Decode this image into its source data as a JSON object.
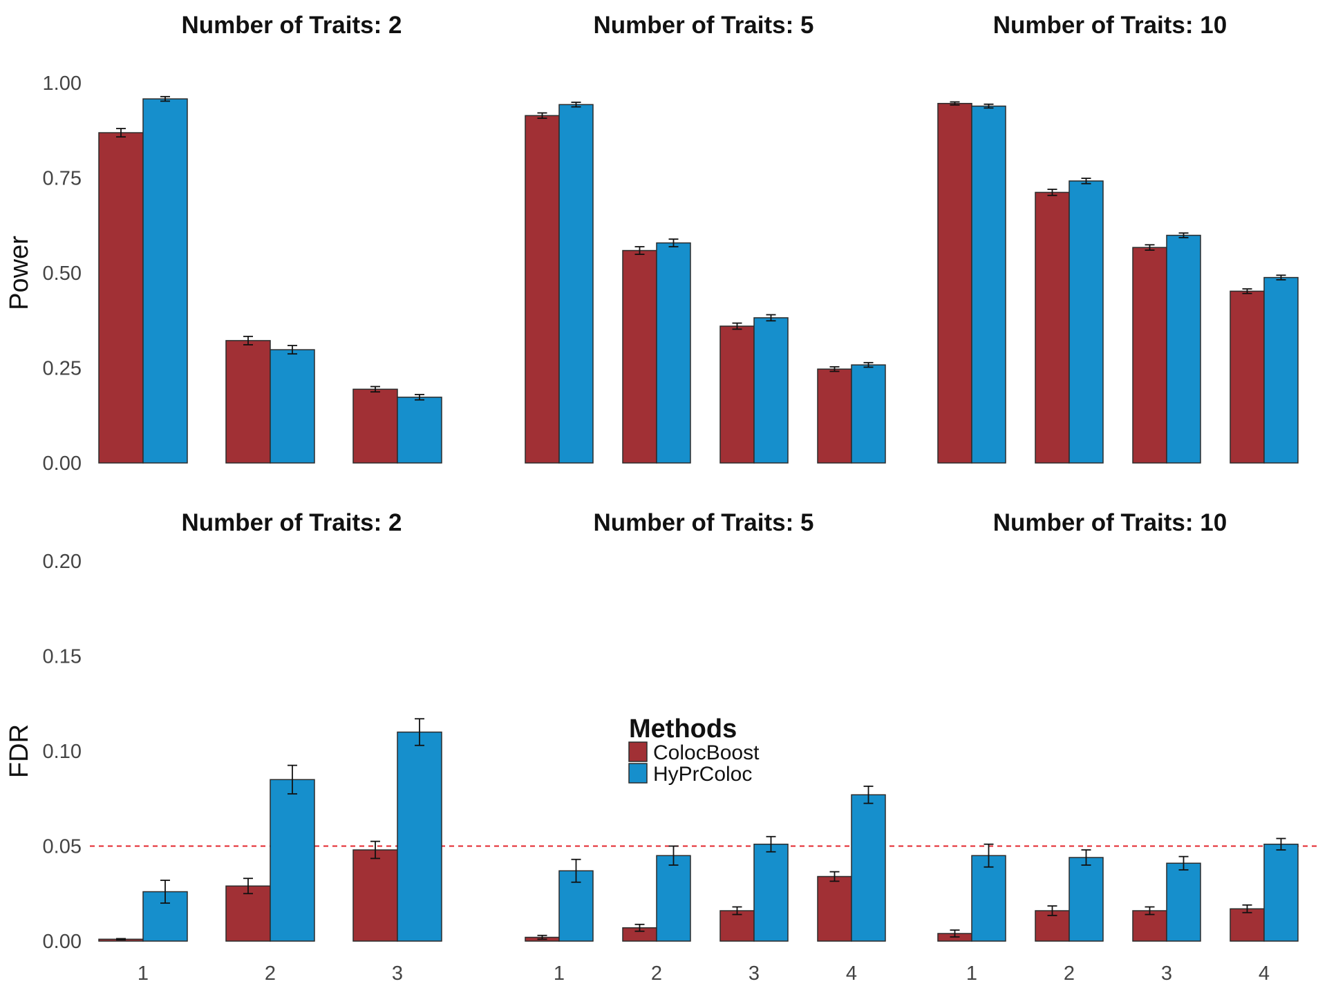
{
  "legend": {
    "title": "Methods",
    "entries": [
      {
        "name": "ColocBoost",
        "color": "#a13035"
      },
      {
        "name": "HyPrColoc",
        "color": "#168fcc"
      }
    ]
  },
  "colors": {
    "ColocBoost": "#a13035",
    "HyPrColoc": "#168fcc",
    "reference_line": "#e3242b"
  },
  "chart_data": [
    {
      "type": "bar",
      "ylabel": "Power",
      "ylim": [
        0,
        1.0
      ],
      "yticks": [
        "0.00",
        "0.25",
        "0.50",
        "0.75",
        "1.00"
      ],
      "grid": false,
      "panels": [
        {
          "title": "Number of Traits: 2",
          "categories": [
            "1",
            "2",
            "3"
          ],
          "series": [
            {
              "name": "ColocBoost",
              "values": [
                0.869,
                0.322,
                0.194
              ],
              "errors": [
                0.011,
                0.011,
                0.007
              ]
            },
            {
              "name": "HyPrColoc",
              "values": [
                0.958,
                0.298,
                0.173
              ],
              "errors": [
                0.006,
                0.011,
                0.007
              ]
            }
          ]
        },
        {
          "title": "Number of Traits: 5",
          "categories": [
            "1",
            "2",
            "3",
            "4"
          ],
          "series": [
            {
              "name": "ColocBoost",
              "values": [
                0.914,
                0.559,
                0.36,
                0.247
              ],
              "errors": [
                0.007,
                0.01,
                0.008,
                0.006
              ]
            },
            {
              "name": "HyPrColoc",
              "values": [
                0.943,
                0.579,
                0.382,
                0.258
              ],
              "errors": [
                0.006,
                0.01,
                0.008,
                0.006
              ]
            }
          ]
        },
        {
          "title": "Number of Traits: 10",
          "categories": [
            "1",
            "2",
            "3",
            "4"
          ],
          "series": [
            {
              "name": "ColocBoost",
              "values": [
                0.946,
                0.712,
                0.567,
                0.452
              ],
              "errors": [
                0.004,
                0.008,
                0.007,
                0.006
              ]
            },
            {
              "name": "HyPrColoc",
              "values": [
                0.939,
                0.742,
                0.599,
                0.488
              ],
              "errors": [
                0.005,
                0.007,
                0.006,
                0.006
              ]
            }
          ]
        }
      ]
    },
    {
      "type": "bar",
      "ylabel": "FDR",
      "ylim": [
        0,
        0.2
      ],
      "yticks": [
        "0.00",
        "0.05",
        "0.10",
        "0.15",
        "0.20"
      ],
      "grid": false,
      "reference_line": {
        "y": 0.05,
        "style": "dashed"
      },
      "legend_position": "center",
      "panels": [
        {
          "title": "Number of Traits: 2",
          "categories": [
            "1",
            "2",
            "3"
          ],
          "series": [
            {
              "name": "ColocBoost",
              "values": [
                0.001,
                0.029,
                0.048
              ],
              "errors": [
                0.0003,
                0.004,
                0.0045
              ]
            },
            {
              "name": "HyPrColoc",
              "values": [
                0.026,
                0.085,
                0.11
              ],
              "errors": [
                0.006,
                0.0075,
                0.007
              ]
            }
          ]
        },
        {
          "title": "Number of Traits: 5",
          "categories": [
            "1",
            "2",
            "3",
            "4"
          ],
          "series": [
            {
              "name": "ColocBoost",
              "values": [
                0.002,
                0.007,
                0.016,
                0.034
              ],
              "errors": [
                0.001,
                0.0018,
                0.002,
                0.0025
              ]
            },
            {
              "name": "HyPrColoc",
              "values": [
                0.037,
                0.045,
                0.051,
                0.077
              ],
              "errors": [
                0.006,
                0.005,
                0.004,
                0.0045
              ]
            }
          ]
        },
        {
          "title": "Number of Traits: 10",
          "categories": [
            "1",
            "2",
            "3",
            "4"
          ],
          "series": [
            {
              "name": "ColocBoost",
              "values": [
                0.004,
                0.016,
                0.016,
                0.017
              ],
              "errors": [
                0.0018,
                0.0025,
                0.002,
                0.002
              ]
            },
            {
              "name": "HyPrColoc",
              "values": [
                0.045,
                0.044,
                0.041,
                0.051
              ],
              "errors": [
                0.006,
                0.004,
                0.0035,
                0.003
              ]
            }
          ]
        }
      ]
    }
  ]
}
